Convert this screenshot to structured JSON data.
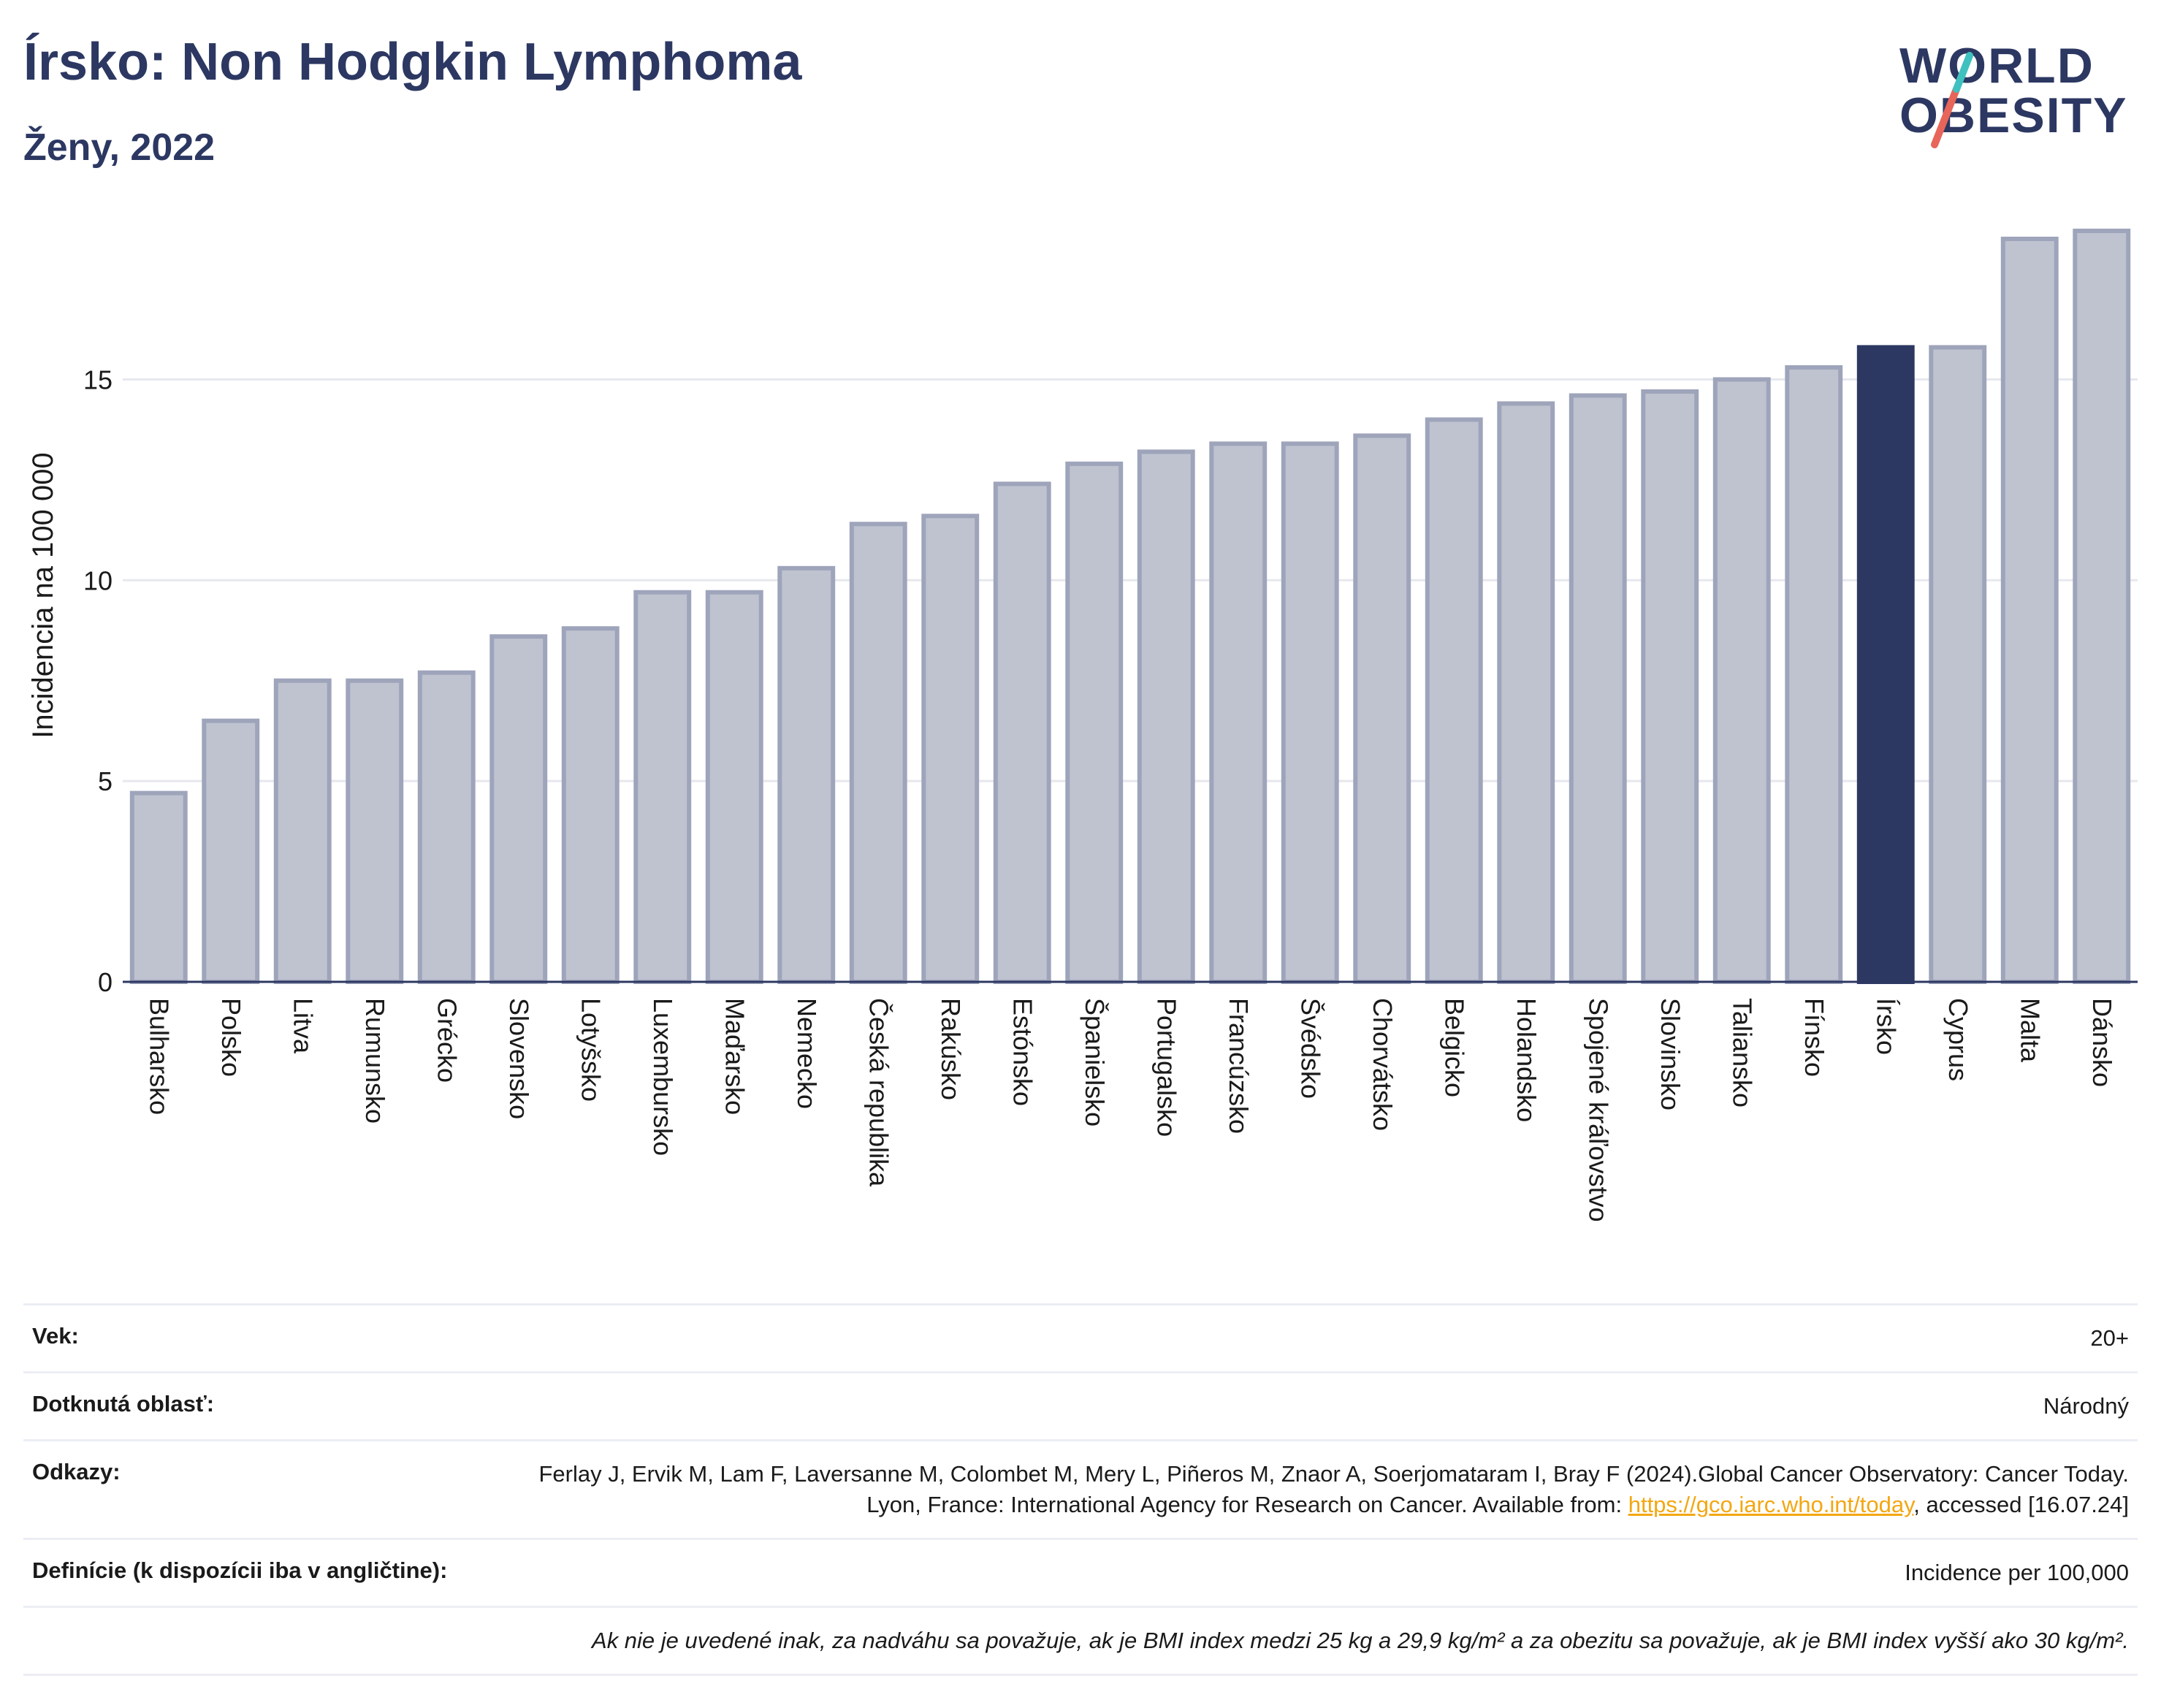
{
  "header": {
    "title": "Írsko: Non Hodgkin Lymphoma",
    "subtitle": "Ženy, 2022"
  },
  "logo": {
    "line1": "WORLD",
    "line2": "OBESITY",
    "colors": {
      "text": "#2c3862",
      "slash_red": "#e8655a",
      "slash_teal": "#3fc1c0"
    }
  },
  "chart_data": {
    "type": "bar",
    "title": "Írsko: Non Hodgkin Lymphoma",
    "subtitle": "Ženy, 2022",
    "ylabel": "Incidencia na 100 000",
    "ylim": [
      0,
      18.7
    ],
    "yticks": [
      0,
      5,
      10,
      15
    ],
    "grid": true,
    "categories": [
      "Bulharsko",
      "Polsko",
      "Litva",
      "Rumunsko",
      "Grécko",
      "Slovensko",
      "Lotyšsko",
      "Luxembursko",
      "Maďarsko",
      "Nemecko",
      "Česká republika",
      "Rakúsko",
      "Estónsko",
      "Španielsko",
      "Portugalsko",
      "Francúzsko",
      "Švédsko",
      "Chorvátsko",
      "Belgicko",
      "Holandsko",
      "Spojené kráľovstvo",
      "Slovinsko",
      "Taliansko",
      "Fínsko",
      "Írsko",
      "Cyprus",
      "Malta",
      "Dánsko"
    ],
    "values": [
      4.7,
      6.5,
      7.5,
      7.5,
      7.7,
      8.6,
      8.8,
      9.7,
      9.7,
      10.3,
      11.4,
      11.6,
      12.4,
      12.9,
      13.2,
      13.4,
      13.4,
      13.6,
      14.0,
      14.4,
      14.6,
      14.7,
      15.0,
      15.3,
      15.8,
      15.8,
      18.5,
      18.7
    ],
    "highlight": "Írsko",
    "colors": {
      "bar": "#bfc3d0",
      "bar_border": "#9ea4ba",
      "highlight": "#2c3862",
      "grid": "#e6e8ee",
      "axis": "#2c3862"
    }
  },
  "meta": {
    "age_label": "Vek:",
    "age_value": "20+",
    "area_label": "Dotknutá oblasť:",
    "area_value": "Národný",
    "refs_label": "Odkazy:",
    "refs_text_1": "Ferlay J, Ervik M, Lam F, Laversanne M, Colombet M, Mery L, Piñeros M, Znaor A, Soerjomataram I, Bray F (2024).Global Cancer Observatory: Cancer Today. Lyon, France: International Agency for Research on Cancer. Available from: ",
    "refs_link": "https://gco.iarc.who.int/today",
    "refs_text_2": ", accessed [16.07.24]",
    "def_label": "Definície (k dispozícii iba v angličtine):",
    "def_value": "Incidence per 100,000",
    "note": "Ak nie je uvedené inak, za nadváhu sa považuje, ak je BMI index medzi 25 kg a 29,9 kg/m² a za obezitu sa považuje, ak je BMI index vyšší ako 30 kg/m²."
  }
}
